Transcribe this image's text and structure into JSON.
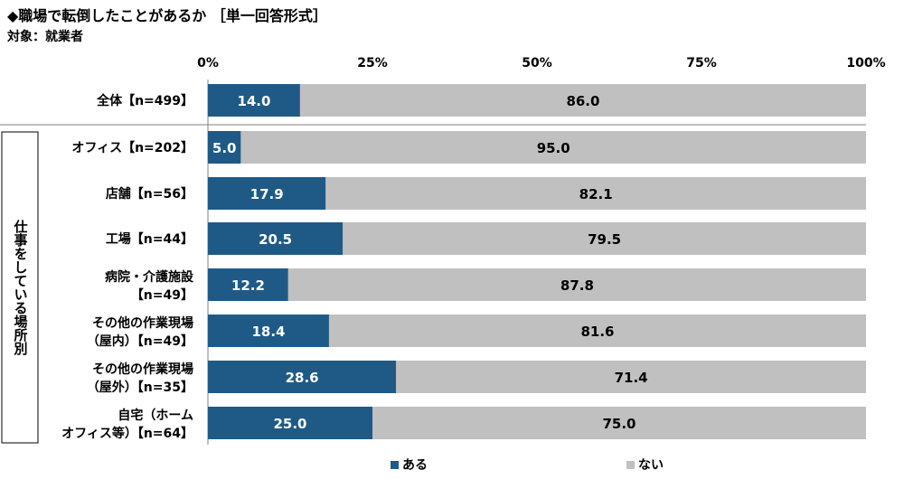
{
  "title": "◆職場で転倒したことがあるか ［単一回答形式］",
  "subtitle": "対象：就業者",
  "colors": {
    "aru": "#1f5a87",
    "nai": "#c0c0c0"
  },
  "chart_data": {
    "type": "bar",
    "orientation": "horizontal",
    "stacked": true,
    "xlim": [
      0,
      100
    ],
    "x_ticks": [
      "0%",
      "25%",
      "50%",
      "75%",
      "100%"
    ],
    "legend_position": "bottom-center",
    "group_label": "仕事をしている場所別",
    "categories": [
      [
        "全体【n=499】"
      ],
      [
        "オフィス【n=202】"
      ],
      [
        "店舗【n=56】"
      ],
      [
        "工場【n=44】"
      ],
      [
        "病院・介護施設",
        "【n=49】"
      ],
      [
        "その他の作業現場",
        "（屋内）【n=49】"
      ],
      [
        "その他の作業現場",
        "（屋外）【n=35】"
      ],
      [
        "自宅（ホーム",
        "オフィス等）【n=64】"
      ]
    ],
    "series": [
      {
        "name": "ある",
        "values": [
          14.0,
          5.0,
          17.9,
          20.5,
          12.2,
          18.4,
          28.6,
          25.0
        ]
      },
      {
        "name": "ない",
        "values": [
          86.0,
          95.0,
          82.1,
          79.5,
          87.8,
          81.6,
          71.4,
          75.0
        ]
      }
    ]
  }
}
